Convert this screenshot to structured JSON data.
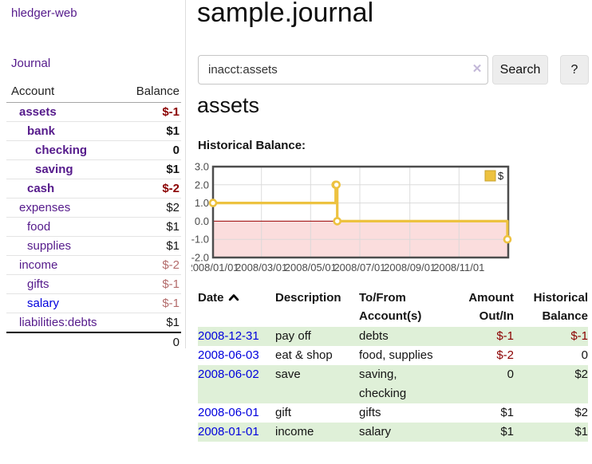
{
  "palette": {
    "ink": "#141414",
    "link_purple": "#551a8b",
    "link_blue": "#0000dd",
    "neg_strong": "#8b0000",
    "neg_soft": "#b36b6b",
    "row_green": "#dff0d8",
    "chart_line": "#edc240",
    "chart_neg_fill": "#fbdddd",
    "zero_line": "#990000",
    "grid_line": "#d8d8d8",
    "plot_border": "#4d4d4d"
  },
  "sidebar": {
    "app_title": "hledger-web",
    "journal_link": "Journal",
    "accounts_table": {
      "headers": [
        "Account",
        "Balance"
      ],
      "rows": [
        {
          "name": "assets",
          "balance": "$-1",
          "indent": 1,
          "bold": true,
          "balance_tone": "neg_strong"
        },
        {
          "name": "bank",
          "balance": "$1",
          "indent": 2,
          "bold": true
        },
        {
          "name": "checking",
          "balance": "0",
          "indent": 3,
          "bold": true
        },
        {
          "name": "saving",
          "balance": "$1",
          "indent": 3,
          "bold": true
        },
        {
          "name": "cash",
          "balance": "$-2",
          "indent": 2,
          "bold": true,
          "balance_tone": "neg_strong"
        },
        {
          "name": "expenses",
          "balance": "$2",
          "indent": 1
        },
        {
          "name": "food",
          "balance": "$1",
          "indent": 2
        },
        {
          "name": "supplies",
          "balance": "$1",
          "indent": 2
        },
        {
          "name": "income",
          "balance": "$-2",
          "indent": 1,
          "balance_tone": "neg_soft"
        },
        {
          "name": "gifts",
          "balance": "$-1",
          "indent": 2,
          "balance_tone": "neg_soft"
        },
        {
          "name": "salary",
          "balance": "$-1",
          "indent": 2,
          "name_tone": "link_blue",
          "balance_tone": "neg_soft"
        },
        {
          "name": "liabilities:debts",
          "balance": "$1",
          "indent": 1
        }
      ],
      "total": "0"
    }
  },
  "main": {
    "title": "sample.journal",
    "search": {
      "value": "inacct:assets",
      "clear_icon": "✕",
      "search_button": "Search",
      "help_button": "?"
    },
    "account_heading": "assets",
    "chart_label": "Historical Balance:"
  },
  "chart_data": {
    "type": "line",
    "title": "Historical Balance",
    "step": true,
    "series": [
      {
        "name": "$",
        "points": [
          [
            "2008-01-01",
            1
          ],
          [
            "2008-06-01",
            2
          ],
          [
            "2008-06-02",
            2
          ],
          [
            "2008-06-03",
            0
          ],
          [
            "2008-12-31",
            -1
          ]
        ]
      }
    ],
    "x_domain": [
      "2008-01-01",
      "2009-01-01"
    ],
    "x_ticks": [
      "2008/01/01",
      "2008/03/01",
      "2008/05/01",
      "2008/07/01",
      "2008/09/01",
      "2008/11/01"
    ],
    "y_ticks": [
      3.0,
      2.0,
      1.0,
      0.0,
      -1.0,
      -2.0
    ],
    "y_tick_labels": [
      "3.0",
      "2.0",
      "1.0",
      "0.0",
      "-1.0",
      "-2.0"
    ],
    "ylim": [
      -2,
      3
    ],
    "grid": true,
    "legend_position": "top-right",
    "negative_region_shaded": true
  },
  "transactions": {
    "headers": [
      "Date",
      "Description",
      "To/From\nAccount(s)",
      "Amount\nOut/In",
      "Historical\nBalance"
    ],
    "sort_column": "Date",
    "sort_direction": "up",
    "rows": [
      {
        "date": "2008-12-31",
        "description": "pay off",
        "accounts": "debts",
        "amount": "$-1",
        "balance": "$-1"
      },
      {
        "date": "2008-06-03",
        "description": "eat & shop",
        "accounts": "food, supplies",
        "amount": "$-2",
        "balance": "0"
      },
      {
        "date": "2008-06-02",
        "description": "save",
        "accounts": "saving,\nchecking",
        "amount": "0",
        "balance": "$2"
      },
      {
        "date": "2008-06-01",
        "description": "gift",
        "accounts": "gifts",
        "amount": "$1",
        "balance": "$2"
      },
      {
        "date": "2008-01-01",
        "description": "income",
        "accounts": "salary",
        "amount": "$1",
        "balance": "$1"
      }
    ]
  }
}
